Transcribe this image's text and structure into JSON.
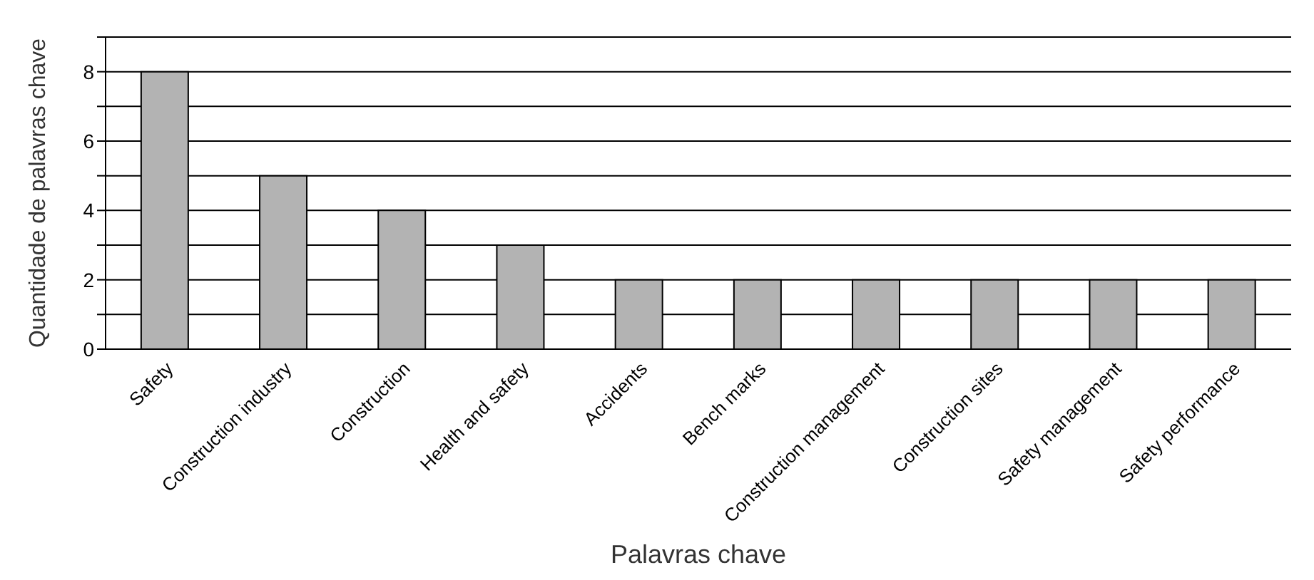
{
  "chart_data": {
    "type": "bar",
    "xlabel": "Palavras chave",
    "ylabel": "Quantidade de palavras chave",
    "categories": [
      "Safety",
      "Construction industry",
      "Construction",
      "Health and safety",
      "Accidents",
      "Bench marks",
      "Construction management",
      "Construction sites",
      "Safety management",
      "Safety performance"
    ],
    "values": [
      8,
      5,
      4,
      3,
      2,
      2,
      2,
      2,
      2,
      2
    ],
    "color": "#b3b3b3",
    "ylim": [
      0,
      9
    ],
    "yticks": [
      0,
      {
        "value": 1,
        "label": null
      },
      2,
      {
        "value": 3,
        "label": null
      },
      4,
      {
        "value": 5,
        "label": null
      },
      6,
      {
        "value": 7,
        "label": null
      },
      8,
      {
        "value": 9,
        "label": null
      }
    ],
    "grid": "y",
    "legend": false
  }
}
